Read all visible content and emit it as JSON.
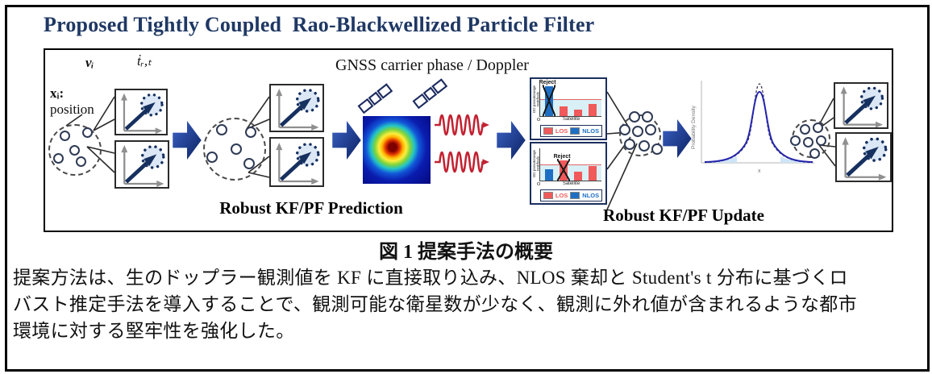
{
  "figure": {
    "title": "Proposed Tightly Coupled  Rao-Blackwellized Particle Filter",
    "caption": "図 1 提案手法の概要",
    "body_lines": [
      "提案方法は、生のドップラー観測値を KF に直接取り込み、NLOS 棄却と Student's t 分布に基づくロ",
      "バスト推定手法を導入することで、観測可能な衛星数が少なく、観測に外れ値が含まれるような都市",
      "環境に対する堅牢性を強化した。"
    ]
  },
  "diagram": {
    "state_labels": {
      "velocity": "vᵢ",
      "clock_drift": "ṫᵣ,ₜ",
      "position_var": "xᵢ:",
      "position_word": "position"
    },
    "gnss_label": "GNSS carrier phase / Doppler",
    "prediction_label": "Robust KF/PF Prediction",
    "update_label": "Robust KF/PF Update"
  },
  "residual_charts": {
    "ylabel": "DD pseudorange residuals",
    "xlabel": "Satellite",
    "origin": "O",
    "reject_label": "Reject",
    "legend": [
      {
        "label": "LOS",
        "color": "#f05a5a"
      },
      {
        "label": "NLOS",
        "color": "#1e6fc4"
      }
    ],
    "top": {
      "threshold": 0.5,
      "bars": [
        {
          "type": "NLOS",
          "value": 0.92,
          "reject": true
        },
        {
          "type": "LOS",
          "value": 0.3
        },
        {
          "type": "LOS",
          "value": 0.2
        },
        {
          "type": "LOS",
          "value": 0.38
        }
      ]
    },
    "bottom": {
      "threshold": 0.47,
      "bars": [
        {
          "type": "NLOS",
          "value": 0.34
        },
        {
          "type": "LOS",
          "value": 0.63,
          "reject": true
        },
        {
          "type": "LOS",
          "value": 0.28
        },
        {
          "type": "LOS",
          "value": 0.46
        }
      ]
    }
  },
  "distribution_plot": {
    "ylabel": "Probability Density",
    "xlabel": "x"
  },
  "colors": {
    "title": "#1f3864",
    "arrow_dark": "#0c2160",
    "arrow_light": "#3c63c8",
    "wave": "#c22232",
    "navy": "#16305f"
  }
}
